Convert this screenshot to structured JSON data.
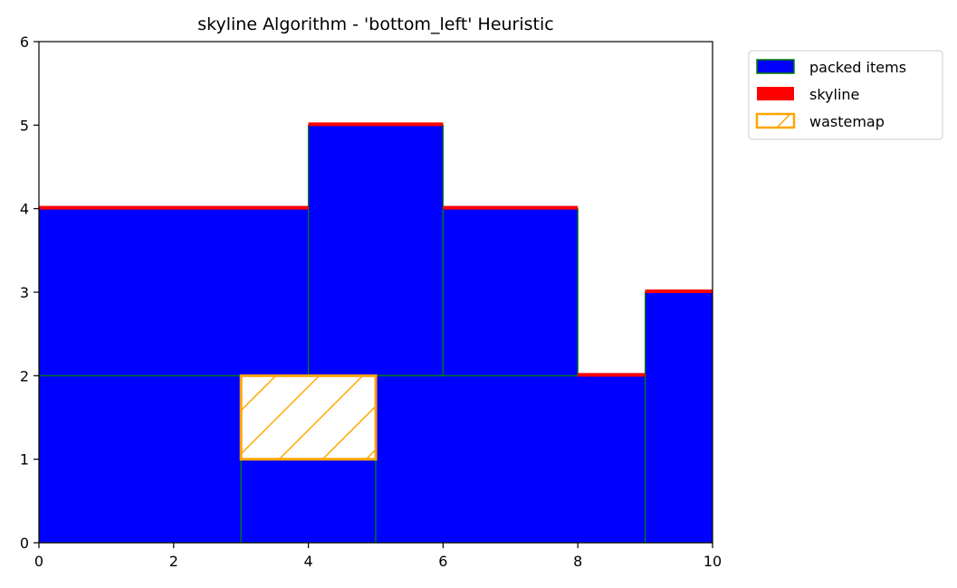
{
  "chart_data": {
    "type": "rectangles",
    "title": "skyline Algorithm - 'bottom_left' Heuristic",
    "xlim": [
      0,
      10
    ],
    "ylim": [
      0,
      6
    ],
    "xticks": [
      "0",
      "2",
      "4",
      "6",
      "8",
      "10"
    ],
    "yticks": [
      "0",
      "1",
      "2",
      "3",
      "4",
      "5",
      "6"
    ],
    "grid": false,
    "legend_position": "outside-top-right",
    "colors": {
      "packed_fill": "#0000ff",
      "packed_edge": "#008000",
      "skyline": "#ff0000",
      "wastemap_edge": "#ffa500"
    },
    "series": [
      {
        "name": "packed items",
        "rects": [
          {
            "x": 0,
            "y": 0,
            "w": 3,
            "h": 2
          },
          {
            "x": 0,
            "y": 2,
            "w": 4,
            "h": 2
          },
          {
            "x": 3,
            "y": 0,
            "w": 2,
            "h": 1
          },
          {
            "x": 4,
            "y": 2,
            "w": 2,
            "h": 3
          },
          {
            "x": 5,
            "y": 0,
            "w": 4,
            "h": 2
          },
          {
            "x": 6,
            "y": 2,
            "w": 2,
            "h": 2
          },
          {
            "x": 9,
            "y": 0,
            "w": 1,
            "h": 3
          }
        ]
      },
      {
        "name": "skyline",
        "segments": [
          {
            "x": 0,
            "w": 4,
            "y": 4
          },
          {
            "x": 4,
            "w": 2,
            "y": 5
          },
          {
            "x": 6,
            "w": 2,
            "y": 4
          },
          {
            "x": 8,
            "w": 1,
            "y": 2
          },
          {
            "x": 9,
            "w": 1,
            "y": 3
          }
        ]
      },
      {
        "name": "wastemap",
        "rects": [
          {
            "x": 3,
            "y": 1,
            "w": 2,
            "h": 1
          }
        ]
      }
    ]
  }
}
